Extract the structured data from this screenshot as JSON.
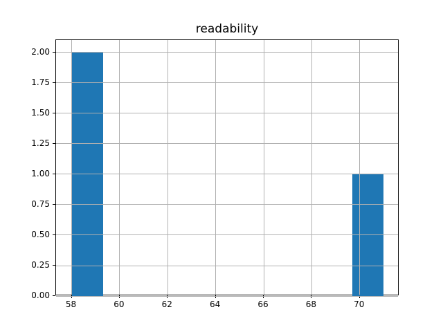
{
  "chart_data": {
    "type": "bar",
    "subtype": "histogram",
    "title": "readability",
    "bin_edges": [
      58.0,
      59.3,
      60.6,
      61.9,
      63.2,
      64.5,
      65.8,
      67.1,
      68.4,
      69.7,
      71.0
    ],
    "counts": [
      2,
      0,
      0,
      0,
      0,
      0,
      0,
      0,
      0,
      1
    ],
    "x_ticks": [
      58,
      60,
      62,
      64,
      66,
      68,
      70
    ],
    "x_tick_labels": [
      "58",
      "60",
      "62",
      "64",
      "66",
      "68",
      "70"
    ],
    "y_ticks": [
      0,
      0.25,
      0.5,
      0.75,
      1.0,
      1.25,
      1.5,
      1.75,
      2.0
    ],
    "y_tick_labels": [
      "0.00",
      "0.25",
      "0.50",
      "0.75",
      "1.00",
      "1.25",
      "1.50",
      "1.75",
      "2.00"
    ],
    "xlim": [
      57.35,
      71.65
    ],
    "ylim": [
      0,
      2.1
    ],
    "xlabel": "",
    "ylabel": "",
    "grid": true,
    "grid_over_bars": true,
    "legend": false,
    "colors": {
      "bar": "#1f77b4",
      "grid": "#b0b0b0",
      "spine": "#000000",
      "text": "#000000",
      "background": "#ffffff"
    }
  }
}
